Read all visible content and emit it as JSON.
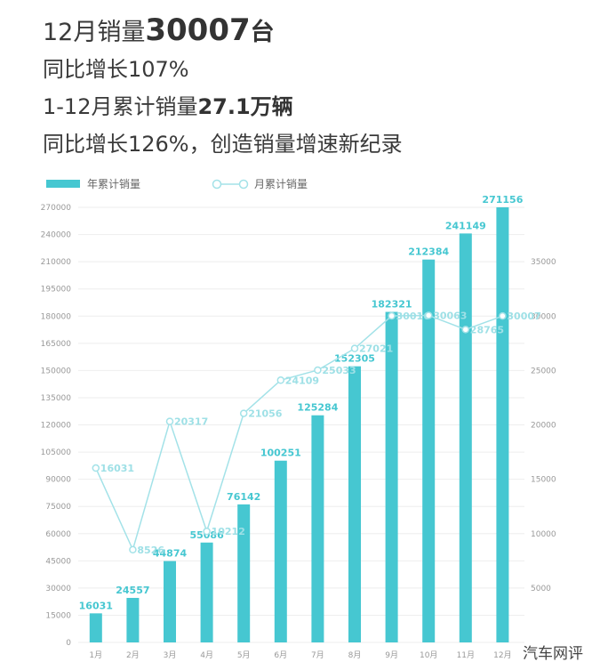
{
  "headlines": {
    "line1_prefix": "12月销量",
    "line1_value": "30007",
    "line1_suffix": "台",
    "line2": "同比增长107%",
    "line3_prefix": "1-12月累计销量",
    "line3_value": "27.1万辆",
    "line4": "同比增长126%，创造销量增速新纪录"
  },
  "watermark": "汽车网评",
  "colors": {
    "bar": "#46c7d1",
    "line": "#a3e2e8",
    "marker_fill": "#ffffff",
    "grid": "#eeeeee"
  },
  "chart_data": {
    "type": "bar",
    "categories": [
      "1月",
      "2月",
      "3月",
      "4月",
      "5月",
      "6月",
      "7月",
      "8月",
      "9月",
      "10月",
      "11月",
      "12月"
    ],
    "series": [
      {
        "name": "年累计销量",
        "type": "bar",
        "axis": "left",
        "values": [
          16031,
          24557,
          44874,
          55086,
          76142,
          100251,
          125284,
          152305,
          182321,
          212384,
          241149,
          271156
        ]
      },
      {
        "name": "月累计销量",
        "type": "line",
        "axis": "right",
        "values": [
          16031,
          8526,
          20317,
          10212,
          21056,
          24109,
          25033,
          27021,
          30016,
          30063,
          28765,
          30007
        ]
      }
    ],
    "y_left": {
      "min": 0,
      "max": 270000,
      "ticks": [
        "0",
        "15000",
        "30000",
        "45000",
        "60000",
        "75000",
        "90000",
        "105000",
        "120000",
        "135000",
        "150000",
        "165000",
        "180000",
        "195000",
        "210000",
        "240000",
        "270000"
      ],
      "tick_values": [
        0,
        15000,
        30000,
        45000,
        60000,
        75000,
        90000,
        105000,
        120000,
        135000,
        150000,
        165000,
        180000,
        195000,
        210000,
        240000,
        270000
      ]
    },
    "y_right": {
      "min": 0,
      "max": 40000,
      "ticks": [
        "5000",
        "10000",
        "15000",
        "20000",
        "25000",
        "30000",
        "35000"
      ],
      "tick_values": [
        5000,
        10000,
        15000,
        20000,
        25000,
        30000,
        35000
      ]
    },
    "grid": true,
    "legend_position": "top-left"
  }
}
